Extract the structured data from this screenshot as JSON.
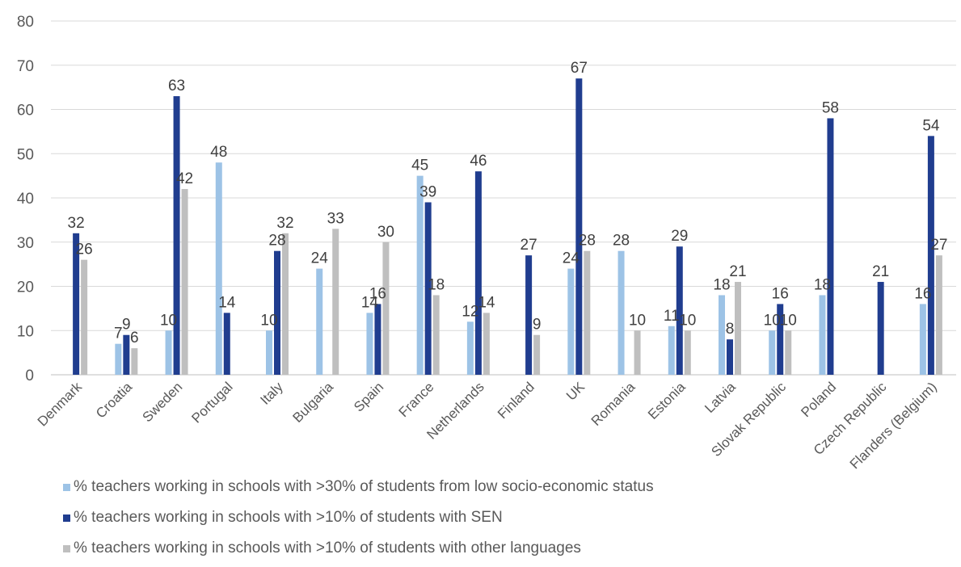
{
  "chart_data": {
    "type": "bar",
    "title": "",
    "xlabel": "",
    "ylabel": "",
    "ylim": [
      0,
      80
    ],
    "yticks": [
      0,
      10,
      20,
      30,
      40,
      50,
      60,
      70,
      80
    ],
    "grid": true,
    "legend_position": "bottom-left",
    "categories": [
      "Denmark",
      "Croatia",
      "Sweden",
      "Portugal",
      "Italy",
      "Bulgaria",
      "Spain",
      "France",
      "Netherlands",
      "Finland",
      "UK",
      "Romania",
      "Estonia",
      "Latvia",
      "Slovak Republic",
      "Poland",
      "Czech Republic",
      "Flanders (Belgium)"
    ],
    "series": [
      {
        "name": "% teachers working in schools with >30% of students from low socio-economic status",
        "color": "#9DC3E6",
        "values": [
          null,
          7,
          10,
          48,
          10,
          24,
          14,
          45,
          12,
          null,
          24,
          28,
          11,
          18,
          10,
          18,
          null,
          16
        ]
      },
      {
        "name": "% teachers working in schools with >10% of students with SEN",
        "color": "#203D8F",
        "values": [
          32,
          9,
          63,
          14,
          28,
          null,
          16,
          39,
          46,
          27,
          67,
          null,
          29,
          8,
          16,
          58,
          21,
          54
        ]
      },
      {
        "name": "% teachers working in schools with >10% of students with other languages",
        "color": "#BFBFBF",
        "values": [
          26,
          6,
          42,
          null,
          32,
          33,
          30,
          18,
          14,
          9,
          28,
          10,
          10,
          21,
          10,
          null,
          null,
          27
        ]
      }
    ]
  }
}
